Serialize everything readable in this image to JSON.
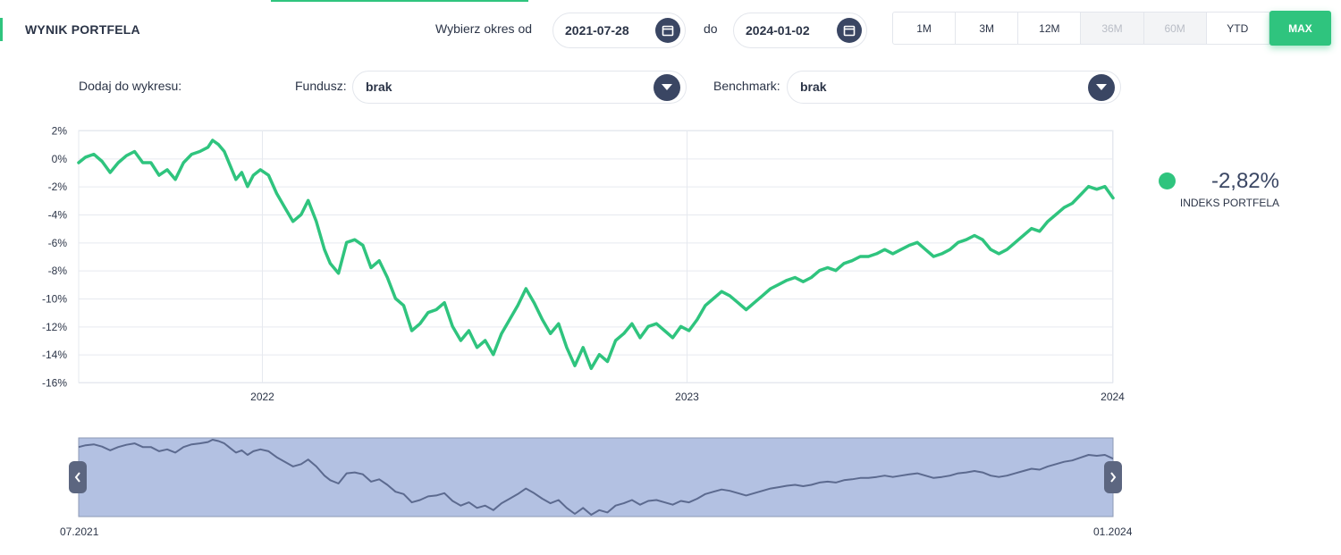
{
  "header": {
    "title": "WYNIK PORTFELA",
    "period_from_label": "Wybierz okres od",
    "date_from": "2021-07-28",
    "to_label": "do",
    "date_to": "2024-01-02",
    "periods": [
      {
        "label": "1M",
        "state": "enabled"
      },
      {
        "label": "3M",
        "state": "enabled"
      },
      {
        "label": "12M",
        "state": "enabled"
      },
      {
        "label": "36M",
        "state": "disabled"
      },
      {
        "label": "60M",
        "state": "disabled"
      },
      {
        "label": "YTD",
        "state": "enabled"
      },
      {
        "label": "MAX",
        "state": "active"
      }
    ]
  },
  "filters": {
    "add_label": "Dodaj do wykresu:",
    "fund_label": "Fundusz:",
    "fund_value": "brak",
    "benchmark_label": "Benchmark:",
    "benchmark_value": "brak"
  },
  "legend": {
    "value": "-2,82%",
    "name": "INDEKS PORTFELA"
  },
  "navigator": {
    "start_label": "07.2021",
    "end_label": "01.2024"
  },
  "colors": {
    "series": "#2fc47e",
    "accent": "#2fc47e",
    "dark": "#3a4663",
    "navigator_fill": "#b3c1e2",
    "navigator_line": "#5c6a8f"
  },
  "chart_data": {
    "type": "line",
    "title": "",
    "xlabel": "",
    "ylabel": "",
    "ylim": [
      -16,
      2
    ],
    "yticks": [
      2,
      0,
      -2,
      -4,
      -6,
      -8,
      -10,
      -12,
      -14,
      -16
    ],
    "ytick_labels": [
      "2%",
      "0%",
      "-2%",
      "-4%",
      "-6%",
      "-8%",
      "-10%",
      "-12%",
      "-14%",
      "-16%"
    ],
    "xlim": [
      "2021-07-28",
      "2024-01-02"
    ],
    "xticks": [
      "2022-01-01",
      "2023-01-01",
      "2024-01-01"
    ],
    "xtick_labels": [
      "2022",
      "2023",
      "2024"
    ],
    "grid": true,
    "legend_position": "right",
    "series": [
      {
        "name": "INDEKS PORTFELA",
        "points": [
          [
            "2021-07-28",
            -0.3
          ],
          [
            "2021-08-03",
            0.1
          ],
          [
            "2021-08-10",
            0.3
          ],
          [
            "2021-08-17",
            -0.2
          ],
          [
            "2021-08-24",
            -1.0
          ],
          [
            "2021-08-31",
            -0.3
          ],
          [
            "2021-09-07",
            0.2
          ],
          [
            "2021-09-14",
            0.5
          ],
          [
            "2021-09-21",
            -0.3
          ],
          [
            "2021-09-28",
            -0.3
          ],
          [
            "2021-10-05",
            -1.2
          ],
          [
            "2021-10-12",
            -0.8
          ],
          [
            "2021-10-19",
            -1.5
          ],
          [
            "2021-10-26",
            -0.3
          ],
          [
            "2021-11-02",
            0.3
          ],
          [
            "2021-11-09",
            0.5
          ],
          [
            "2021-11-16",
            0.8
          ],
          [
            "2021-11-20",
            1.3
          ],
          [
            "2021-11-25",
            1.0
          ],
          [
            "2021-11-30",
            0.5
          ],
          [
            "2021-12-05",
            -0.5
          ],
          [
            "2021-12-10",
            -1.5
          ],
          [
            "2021-12-15",
            -1.0
          ],
          [
            "2021-12-20",
            -2.0
          ],
          [
            "2021-12-25",
            -1.2
          ],
          [
            "2021-12-31",
            -0.8
          ],
          [
            "2022-01-07",
            -1.2
          ],
          [
            "2022-01-14",
            -2.5
          ],
          [
            "2022-01-21",
            -3.5
          ],
          [
            "2022-01-28",
            -4.5
          ],
          [
            "2022-02-04",
            -4.0
          ],
          [
            "2022-02-10",
            -3.0
          ],
          [
            "2022-02-17",
            -4.5
          ],
          [
            "2022-02-24",
            -6.5
          ],
          [
            "2022-03-01",
            -7.5
          ],
          [
            "2022-03-08",
            -8.2
          ],
          [
            "2022-03-15",
            -6.0
          ],
          [
            "2022-03-22",
            -5.8
          ],
          [
            "2022-03-29",
            -6.2
          ],
          [
            "2022-04-05",
            -7.8
          ],
          [
            "2022-04-12",
            -7.3
          ],
          [
            "2022-04-19",
            -8.5
          ],
          [
            "2022-04-26",
            -10.0
          ],
          [
            "2022-05-03",
            -10.5
          ],
          [
            "2022-05-10",
            -12.3
          ],
          [
            "2022-05-17",
            -11.8
          ],
          [
            "2022-05-24",
            -11.0
          ],
          [
            "2022-05-31",
            -10.8
          ],
          [
            "2022-06-07",
            -10.3
          ],
          [
            "2022-06-14",
            -12.0
          ],
          [
            "2022-06-21",
            -13.0
          ],
          [
            "2022-06-28",
            -12.3
          ],
          [
            "2022-07-05",
            -13.5
          ],
          [
            "2022-07-12",
            -13.0
          ],
          [
            "2022-07-19",
            -14.0
          ],
          [
            "2022-07-26",
            -12.5
          ],
          [
            "2022-08-02",
            -11.5
          ],
          [
            "2022-08-09",
            -10.5
          ],
          [
            "2022-08-16",
            -9.3
          ],
          [
            "2022-08-23",
            -10.3
          ],
          [
            "2022-08-30",
            -11.5
          ],
          [
            "2022-09-06",
            -12.5
          ],
          [
            "2022-09-13",
            -11.8
          ],
          [
            "2022-09-20",
            -13.5
          ],
          [
            "2022-09-27",
            -14.8
          ],
          [
            "2022-10-04",
            -13.5
          ],
          [
            "2022-10-11",
            -15.0
          ],
          [
            "2022-10-18",
            -14.0
          ],
          [
            "2022-10-25",
            -14.5
          ],
          [
            "2022-11-01",
            -13.0
          ],
          [
            "2022-11-08",
            -12.5
          ],
          [
            "2022-11-15",
            -11.8
          ],
          [
            "2022-11-22",
            -12.8
          ],
          [
            "2022-11-29",
            -12.0
          ],
          [
            "2022-12-06",
            -11.8
          ],
          [
            "2022-12-13",
            -12.3
          ],
          [
            "2022-12-20",
            -12.8
          ],
          [
            "2022-12-27",
            -12.0
          ],
          [
            "2023-01-03",
            -12.3
          ],
          [
            "2023-01-10",
            -11.5
          ],
          [
            "2023-01-17",
            -10.5
          ],
          [
            "2023-01-24",
            -10.0
          ],
          [
            "2023-01-31",
            -9.5
          ],
          [
            "2023-02-07",
            -9.8
          ],
          [
            "2023-02-14",
            -10.3
          ],
          [
            "2023-02-21",
            -10.8
          ],
          [
            "2023-02-28",
            -10.3
          ],
          [
            "2023-03-07",
            -9.8
          ],
          [
            "2023-03-14",
            -9.3
          ],
          [
            "2023-03-21",
            -9.0
          ],
          [
            "2023-03-28",
            -8.7
          ],
          [
            "2023-04-04",
            -8.5
          ],
          [
            "2023-04-11",
            -8.8
          ],
          [
            "2023-04-18",
            -8.5
          ],
          [
            "2023-04-25",
            -8.0
          ],
          [
            "2023-05-02",
            -7.8
          ],
          [
            "2023-05-09",
            -8.0
          ],
          [
            "2023-05-16",
            -7.5
          ],
          [
            "2023-05-23",
            -7.3
          ],
          [
            "2023-05-30",
            -7.0
          ],
          [
            "2023-06-06",
            -7.0
          ],
          [
            "2023-06-13",
            -6.8
          ],
          [
            "2023-06-20",
            -6.5
          ],
          [
            "2023-06-27",
            -6.8
          ],
          [
            "2023-07-04",
            -6.5
          ],
          [
            "2023-07-11",
            -6.2
          ],
          [
            "2023-07-18",
            -6.0
          ],
          [
            "2023-07-25",
            -6.5
          ],
          [
            "2023-08-01",
            -7.0
          ],
          [
            "2023-08-08",
            -6.8
          ],
          [
            "2023-08-15",
            -6.5
          ],
          [
            "2023-08-22",
            -6.0
          ],
          [
            "2023-08-29",
            -5.8
          ],
          [
            "2023-09-05",
            -5.5
          ],
          [
            "2023-09-12",
            -5.8
          ],
          [
            "2023-09-19",
            -6.5
          ],
          [
            "2023-09-26",
            -6.8
          ],
          [
            "2023-10-03",
            -6.5
          ],
          [
            "2023-10-10",
            -6.0
          ],
          [
            "2023-10-17",
            -5.5
          ],
          [
            "2023-10-24",
            -5.0
          ],
          [
            "2023-10-31",
            -5.2
          ],
          [
            "2023-11-07",
            -4.5
          ],
          [
            "2023-11-14",
            -4.0
          ],
          [
            "2023-11-21",
            -3.5
          ],
          [
            "2023-11-28",
            -3.2
          ],
          [
            "2023-12-05",
            -2.6
          ],
          [
            "2023-12-12",
            -2.0
          ],
          [
            "2023-12-19",
            -2.2
          ],
          [
            "2023-12-26",
            -2.0
          ],
          [
            "2024-01-02",
            -2.82
          ]
        ]
      }
    ]
  }
}
